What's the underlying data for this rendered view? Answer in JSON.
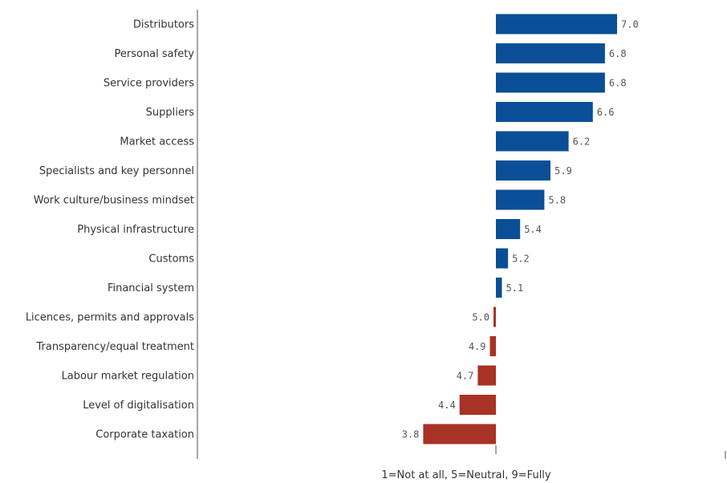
{
  "chart_data": {
    "type": "bar",
    "orientation": "horizontal",
    "title": "",
    "xlabel": "",
    "ylabel": "",
    "baseline": 5.0,
    "xlim": [
      1,
      9
    ],
    "scale_note": "1=Not at all, 5=Neutral, 9=Fully",
    "categories": [
      "Distributors",
      "Personal safety",
      "Service providers",
      "Suppliers",
      "Market access",
      "Specialists and key personnel",
      "Work culture/business mindset",
      "Physical infrastructure",
      "Customs",
      "Financial system",
      "Licences, permits and approvals",
      "Transparency/equal treatment",
      "Labour market regulation",
      "Level of digitalisation",
      "Corporate taxation"
    ],
    "values": [
      7.0,
      6.8,
      6.8,
      6.6,
      6.2,
      5.9,
      5.8,
      5.4,
      5.2,
      5.1,
      5.0,
      4.9,
      4.7,
      4.4,
      3.8
    ],
    "value_labels": [
      "7.0",
      "6.8",
      "6.8",
      "6.6",
      "6.2",
      "5.9",
      "5.8",
      "5.4",
      "5.2",
      "5.1",
      "5.0",
      "4.9",
      "4.7",
      "4.4",
      "3.8"
    ],
    "colors": {
      "above_neutral": "#0a4f96",
      "below_neutral": "#a93226",
      "axis": "#888888"
    },
    "grid": false,
    "legend": "none"
  }
}
